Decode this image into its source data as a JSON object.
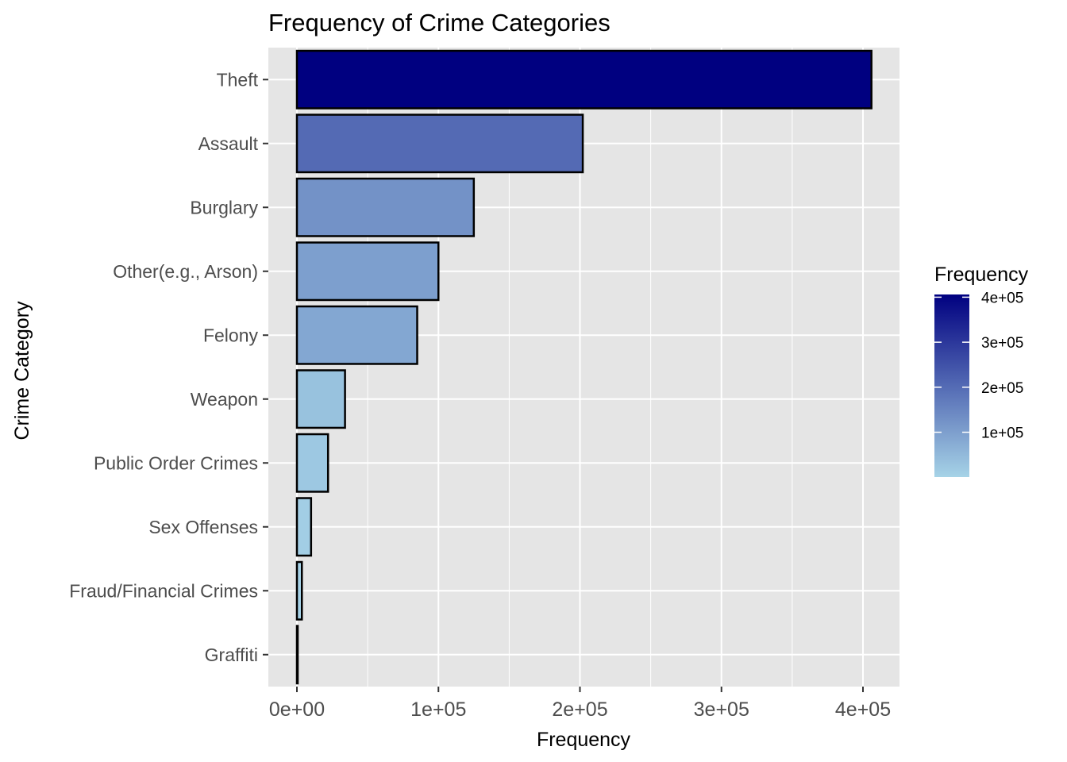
{
  "chart_data": {
    "type": "bar",
    "orientation": "horizontal",
    "title": "Frequency of Crime Categories",
    "xlabel": "Frequency",
    "ylabel": "Crime Category",
    "categories": [
      "Theft",
      "Assault",
      "Burglary",
      "Other(e.g., Arson)",
      "Felony",
      "Weapon",
      "Public Order Crimes",
      "Sex Offenses",
      "Fraud/Financial Crimes",
      "Graffiti"
    ],
    "values": [
      406000,
      202000,
      125000,
      100000,
      85000,
      34000,
      22000,
      10000,
      3500,
      500
    ],
    "xlim": [
      0,
      425000
    ],
    "x_ticks": [
      0,
      100000,
      200000,
      300000,
      400000
    ],
    "x_tick_labels": [
      "0e+00",
      "1e+05",
      "2e+05",
      "3e+05",
      "4e+05"
    ],
    "grid": true,
    "legend": {
      "title": "Frequency",
      "position": "right",
      "type": "colorbar",
      "range": [
        500,
        406000
      ],
      "ticks": [
        100000,
        200000,
        300000,
        400000
      ],
      "tick_labels": [
        "1e+05",
        "2e+05",
        "3e+05",
        "4e+05"
      ],
      "color_low": "#a6d3e7",
      "color_high": "#000080"
    },
    "colors": {
      "panel_background": "#e5e5e5",
      "grid": "#ffffff",
      "bar_outline": "#000000"
    }
  }
}
